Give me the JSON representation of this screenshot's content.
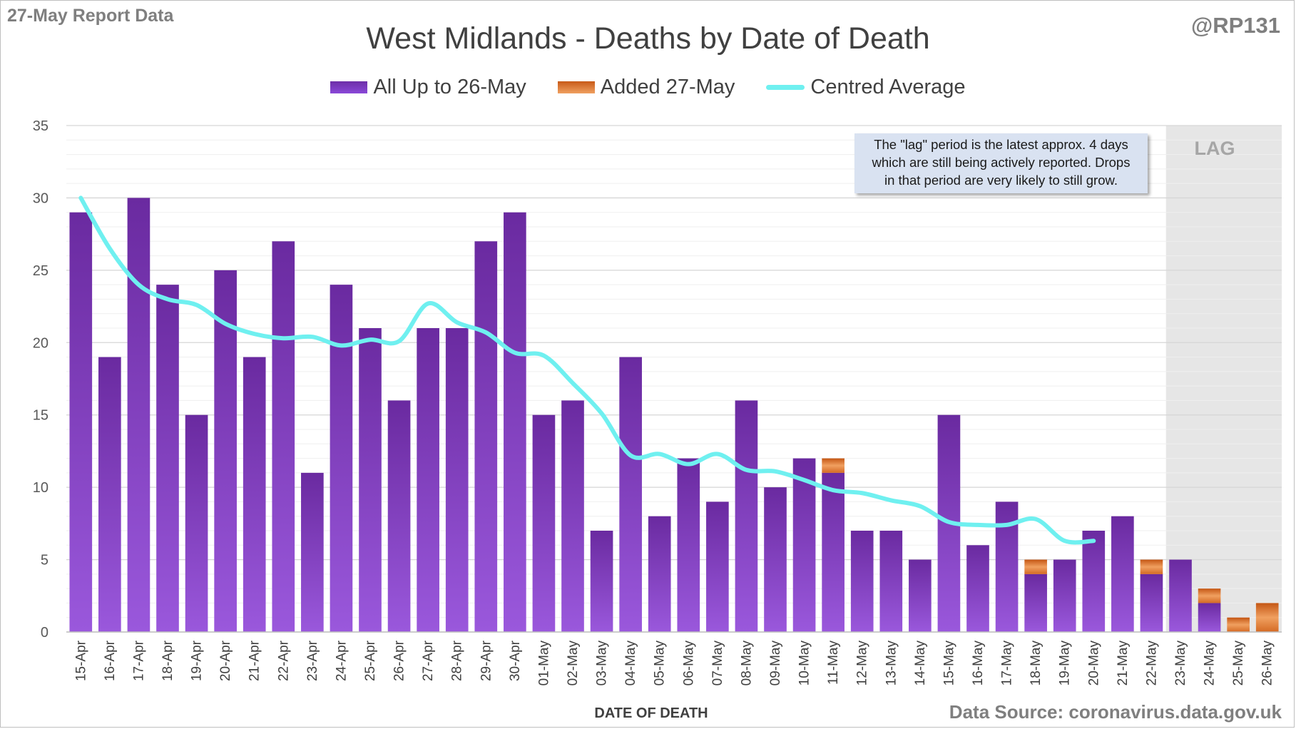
{
  "header": {
    "report_label": "27-May Report Data",
    "author": "@RP131"
  },
  "footer": {
    "source": "Data Source: coronavirus.data.gov.uk"
  },
  "annotation": {
    "lag_label": "LAG",
    "lag_note_lines": [
      "The \"lag\" period is the latest approx. 4 days",
      "which are still being actively reported. Drops",
      "in that period are very likely to still grow."
    ]
  },
  "colors": {
    "bar_main": "#7030a0",
    "bar_added": "#e07a30",
    "line_avg": "#6ff0f0",
    "lag_shade": "#e6e6e6",
    "grid": "#e3e3e3"
  },
  "chart_data": {
    "type": "bar",
    "title": "West Midlands - Deaths by Date of Death",
    "xlabel": "DATE OF DEATH",
    "ylabel": "",
    "ylim": [
      0,
      35
    ],
    "yticks": [
      0,
      5,
      10,
      15,
      20,
      25,
      30,
      35
    ],
    "grid": true,
    "legend_position": "top-center",
    "stacked": true,
    "lag_period": {
      "from": "23-May",
      "to": "26-May"
    },
    "categories": [
      "15-Apr",
      "16-Apr",
      "17-Apr",
      "18-Apr",
      "19-Apr",
      "20-Apr",
      "21-Apr",
      "22-Apr",
      "23-Apr",
      "24-Apr",
      "25-Apr",
      "26-Apr",
      "27-Apr",
      "28-Apr",
      "29-Apr",
      "30-Apr",
      "01-May",
      "02-May",
      "03-May",
      "04-May",
      "05-May",
      "06-May",
      "07-May",
      "08-May",
      "09-May",
      "10-May",
      "11-May",
      "12-May",
      "13-May",
      "14-May",
      "15-May",
      "16-May",
      "17-May",
      "18-May",
      "19-May",
      "20-May",
      "21-May",
      "22-May",
      "23-May",
      "24-May",
      "25-May",
      "26-May"
    ],
    "series": [
      {
        "name": "All Up to 26-May",
        "kind": "bar",
        "values": [
          29,
          19,
          30,
          24,
          15,
          25,
          19,
          27,
          11,
          24,
          21,
          16,
          21,
          21,
          27,
          29,
          15,
          16,
          7,
          19,
          8,
          12,
          9,
          16,
          10,
          12,
          11,
          7,
          7,
          5,
          15,
          6,
          9,
          4,
          5,
          7,
          8,
          4,
          5,
          2,
          0,
          0
        ]
      },
      {
        "name": "Added 27-May",
        "kind": "bar",
        "values": [
          0,
          0,
          0,
          0,
          0,
          0,
          0,
          0,
          0,
          0,
          0,
          0,
          0,
          0,
          0,
          0,
          0,
          0,
          0,
          0,
          0,
          0,
          0,
          0,
          0,
          0,
          1,
          0,
          0,
          0,
          0,
          0,
          0,
          1,
          0,
          0,
          0,
          1,
          0,
          1,
          1,
          2
        ]
      },
      {
        "name": "Centred Average",
        "kind": "line",
        "values": [
          30,
          26.5,
          24,
          23,
          22.6,
          21.3,
          20.6,
          20.3,
          20.4,
          19.8,
          20.2,
          20.1,
          22.7,
          21.4,
          20.7,
          19.3,
          19.1,
          17.2,
          15.1,
          12.2,
          12.3,
          11.6,
          12.3,
          11.2,
          11.1,
          10.5,
          9.8,
          9.6,
          9.1,
          8.7,
          7.6,
          7.4,
          7.4,
          7.8,
          6.3,
          6.3,
          null,
          null,
          null,
          null,
          null,
          null
        ]
      }
    ]
  }
}
